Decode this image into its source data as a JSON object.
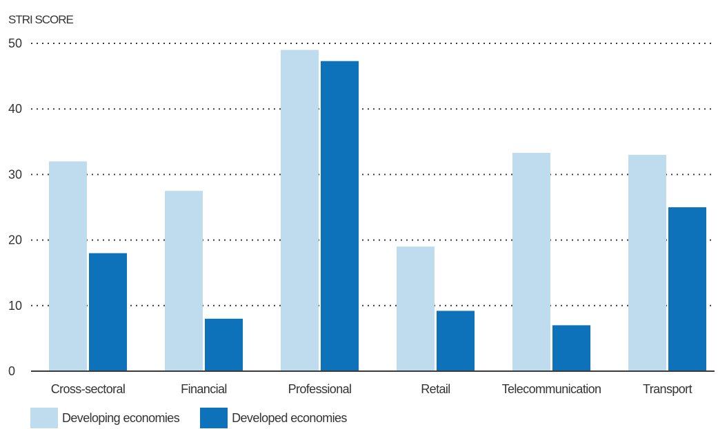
{
  "chart_data": {
    "type": "bar",
    "ylabel": "STRI SCORE",
    "xlabel": "",
    "ylim": [
      0,
      50
    ],
    "yticks": [
      0,
      10,
      20,
      30,
      40,
      50
    ],
    "grid": "dotted-horizontal",
    "legend_position": "bottom-left",
    "categories": [
      "Cross-sectoral",
      "Financial",
      "Professional",
      "Retail",
      "Telecommunication",
      "Transport"
    ],
    "series": [
      {
        "name": "Developing economies",
        "color": "#bfdcee",
        "values": [
          32,
          27.5,
          49,
          19,
          33.3,
          33
        ]
      },
      {
        "name": "Developed economies",
        "color": "#0d72ba",
        "values": [
          18,
          8,
          47.3,
          9.2,
          7,
          25
        ]
      }
    ]
  }
}
